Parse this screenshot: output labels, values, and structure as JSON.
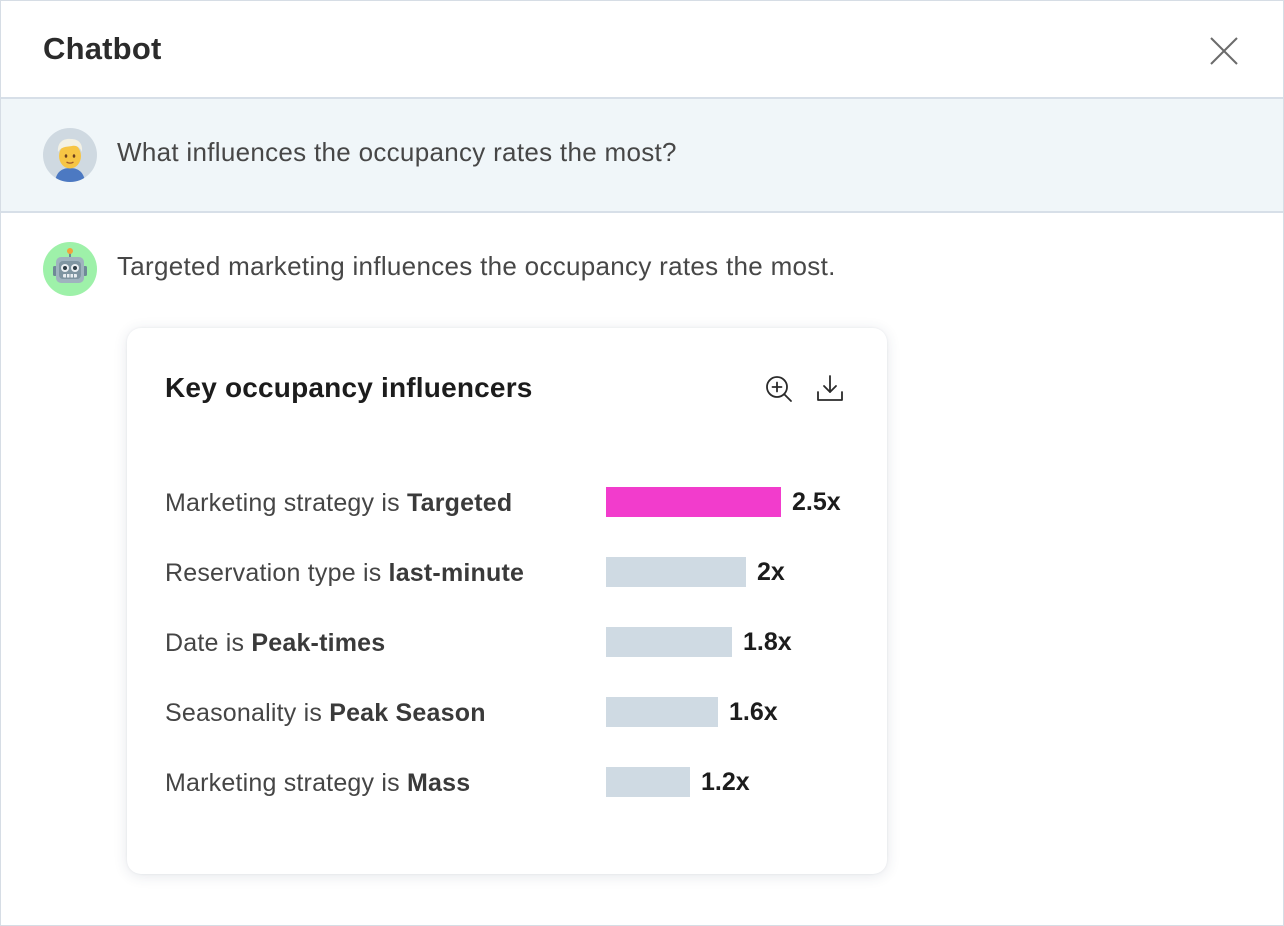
{
  "window": {
    "title": "Chatbot"
  },
  "conversation": {
    "user_message": {
      "avatar_icon": "person-emoji-icon",
      "text": "What influences the occupancy rates the most?"
    },
    "bot_message": {
      "avatar_icon": "robot-emoji-icon",
      "text": "Targeted marketing influences the occupancy rates the most."
    }
  },
  "card": {
    "title": "Key occupancy influencers",
    "actions": {
      "zoom_icon": "zoom-in-icon",
      "download_icon": "download-icon"
    }
  },
  "chart_data": {
    "type": "bar",
    "orientation": "horizontal",
    "title": "Key occupancy influencers",
    "xlabel": "",
    "ylabel": "",
    "xlim": [
      0,
      2.5
    ],
    "categories": [
      "Marketing strategy is Targeted",
      "Reservation type is last-minute",
      "Date is Peak-times",
      "Seasonality is Peak Season",
      "Marketing strategy is Mass"
    ],
    "category_parts": [
      {
        "prefix": "Marketing strategy is ",
        "emphasis": "Targeted"
      },
      {
        "prefix": "Reservation type is ",
        "emphasis": "last-minute"
      },
      {
        "prefix": "Date is ",
        "emphasis": "Peak-times"
      },
      {
        "prefix": "Seasonality is ",
        "emphasis": "Peak Season"
      },
      {
        "prefix": "Marketing strategy is ",
        "emphasis": "Mass"
      }
    ],
    "values": [
      2.5,
      2.0,
      1.8,
      1.6,
      1.2
    ],
    "value_labels": [
      "2.5x",
      "2x",
      "1.8x",
      "1.6x",
      "1.2x"
    ],
    "highlight_index": 0,
    "colors": {
      "highlight": "#f23ccc",
      "default": "#cfdae3"
    }
  }
}
